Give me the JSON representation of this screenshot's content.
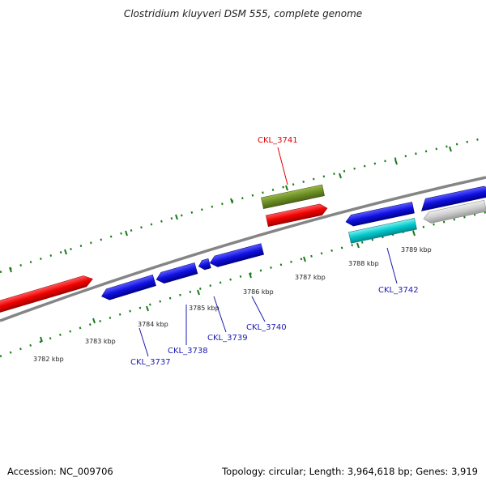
{
  "title": "Clostridium kluyveri DSM 555, complete genome",
  "footer": {
    "accession": "Accession: NC_009706",
    "summary": "Topology: circular; Length: 3,964,618 bp; Genes: 3,919"
  },
  "colors": {
    "backbone": "#888888",
    "tick": "#1a7a1a",
    "forward_gene": "#f00000",
    "reverse_gene": "#1010e0",
    "rna_gene": "#6b8e23",
    "cyan_gene": "#00c8cc",
    "grey_gene": "#c8c8c8",
    "label_red": "#e00000",
    "label_blue": "#1a1ab0"
  },
  "kbp_labels": [
    "3782 kbp",
    "3783 kbp",
    "3784 kbp",
    "3785 kbp",
    "3786 kbp",
    "3787 kbp",
    "3788 kbp",
    "3789 kbp"
  ],
  "gene_labels": [
    "CKL_3741",
    "CKL_3742",
    "CKL_3737",
    "CKL_3738",
    "CKL_3739",
    "CKL_3740"
  ]
}
